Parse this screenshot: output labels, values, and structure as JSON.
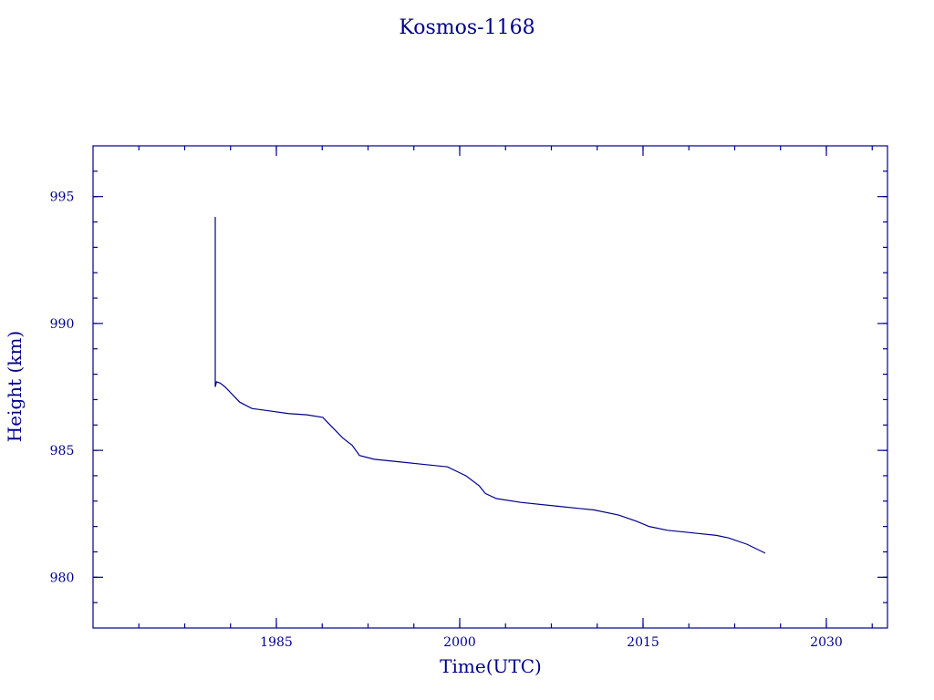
{
  "chart_data": {
    "type": "line",
    "title": "Kosmos-1168",
    "xlabel": "Time(UTC)",
    "ylabel": "Height (km)",
    "xlim": [
      1970,
      2035
    ],
    "ylim": [
      978,
      997
    ],
    "xticks_major": [
      1985,
      2000,
      2015,
      2030
    ],
    "xticks_minor_step": 3.75,
    "yticks_major": [
      980,
      985,
      990,
      995
    ],
    "yticks_minor_step": 1,
    "grid": false,
    "legend": "none",
    "color": "#00008b",
    "series": [
      {
        "points": [
          [
            1980.0,
            994.2
          ],
          [
            1980.0,
            987.5
          ],
          [
            1980.1,
            987.7
          ],
          [
            1980.4,
            987.65
          ],
          [
            1980.8,
            987.5
          ],
          [
            1981.4,
            987.2
          ],
          [
            1982.0,
            986.9
          ],
          [
            1983.0,
            986.65
          ],
          [
            1984.5,
            986.55
          ],
          [
            1986.0,
            986.45
          ],
          [
            1987.5,
            986.4
          ],
          [
            1988.8,
            986.3
          ],
          [
            1989.6,
            985.9
          ],
          [
            1990.4,
            985.5
          ],
          [
            1991.2,
            985.2
          ],
          [
            1991.8,
            984.8
          ],
          [
            1993.0,
            984.65
          ],
          [
            1995.0,
            984.55
          ],
          [
            1997.0,
            984.45
          ],
          [
            1999.0,
            984.35
          ],
          [
            2000.5,
            984.0
          ],
          [
            2001.6,
            983.6
          ],
          [
            2002.1,
            983.3
          ],
          [
            2003.0,
            983.1
          ],
          [
            2005.0,
            982.95
          ],
          [
            2008.0,
            982.8
          ],
          [
            2011.0,
            982.65
          ],
          [
            2013.0,
            982.45
          ],
          [
            2014.5,
            982.2
          ],
          [
            2015.5,
            982.0
          ],
          [
            2017.0,
            981.85
          ],
          [
            2019.0,
            981.75
          ],
          [
            2021.0,
            981.65
          ],
          [
            2022.0,
            981.55
          ],
          [
            2023.5,
            981.3
          ],
          [
            2025.0,
            980.95
          ]
        ]
      }
    ]
  }
}
